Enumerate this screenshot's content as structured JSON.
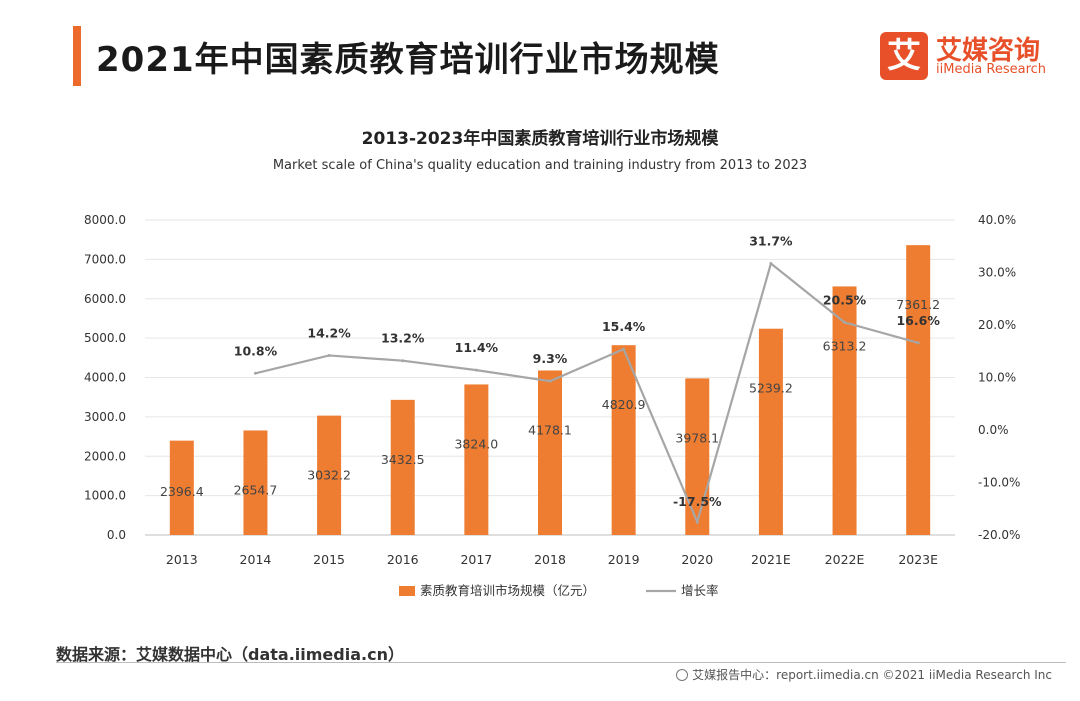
{
  "header": {
    "title": "2021年中国素质教育培训行业市场规模",
    "logo_mark": "艾",
    "logo_cn": "艾媒咨询",
    "logo_en": "iiMedia Research",
    "accent_color": "#ec6a2c"
  },
  "chart_data": {
    "type": "bar",
    "title": "2013-2023年中国素质教育培训行业市场规模",
    "subtitle": "Market scale of China's quality education and training industry from 2013 to 2023",
    "categories": [
      "2013",
      "2014",
      "2015",
      "2016",
      "2017",
      "2018",
      "2019",
      "2020",
      "2021E",
      "2022E",
      "2023E"
    ],
    "series": [
      {
        "name": "素质教育培训市场规模（亿元）",
        "type": "bar",
        "axis": "left",
        "color": "#ee7d31",
        "values": [
          2396.4,
          2654.7,
          3032.2,
          3432.5,
          3824.0,
          4178.1,
          4820.9,
          3978.1,
          5239.2,
          6313.2,
          7361.2
        ],
        "labels": [
          "2396.4",
          "2654.7",
          "3032.2",
          "3432.5",
          "3824.0",
          "4178.1",
          "4820.9",
          "3978.1",
          "5239.2",
          "6313.2",
          "7361.2"
        ]
      },
      {
        "name": "增长率",
        "type": "line",
        "axis": "right",
        "color": "#a6a6a6",
        "values": [
          null,
          10.8,
          14.2,
          13.2,
          11.4,
          9.3,
          15.4,
          -17.5,
          31.7,
          20.5,
          16.6
        ],
        "labels": [
          "",
          "10.8%",
          "14.2%",
          "13.2%",
          "11.4%",
          "9.3%",
          "15.4%",
          "-17.5%",
          "31.7%",
          "20.5%",
          "16.6%"
        ]
      }
    ],
    "ylim_left": [
      0,
      8000
    ],
    "ylim_right": [
      -20,
      40
    ],
    "yticks_left": [
      "0.0",
      "1000.0",
      "2000.0",
      "3000.0",
      "4000.0",
      "5000.0",
      "6000.0",
      "7000.0",
      "8000.0"
    ],
    "yticks_right": [
      "-20.0%",
      "-10.0%",
      "0.0%",
      "10.0%",
      "20.0%",
      "30.0%",
      "40.0%"
    ],
    "grid": true,
    "legend_position": "bottom"
  },
  "source": "数据来源：艾媒数据中心（data.iimedia.cn）",
  "footer": "艾媒报告中心：report.iimedia.cn    ©2021  iiMedia Research  Inc"
}
